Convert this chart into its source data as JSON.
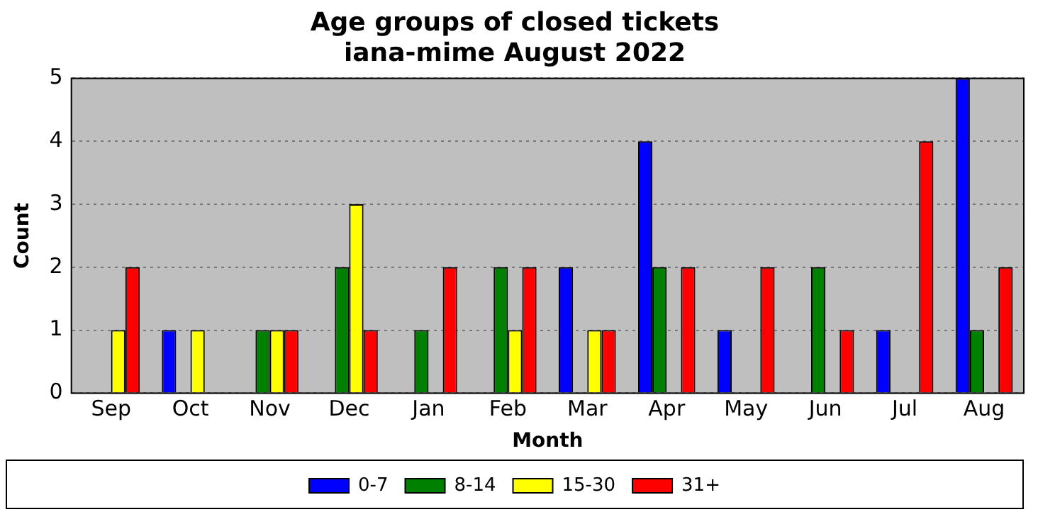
{
  "chart_data": {
    "type": "bar",
    "title": "Age groups of closed tickets\niana-mime August 2022",
    "xlabel": "Month",
    "ylabel": "Count",
    "categories": [
      "Sep",
      "Oct",
      "Nov",
      "Dec",
      "Jan",
      "Feb",
      "Mar",
      "Apr",
      "May",
      "Jun",
      "Jul",
      "Aug"
    ],
    "series": [
      {
        "name": "0-7",
        "color": "#0000ff",
        "values": [
          0,
          1,
          0,
          0,
          0,
          0,
          2,
          4,
          1,
          0,
          1,
          5
        ]
      },
      {
        "name": "8-14",
        "color": "#008000",
        "values": [
          0,
          0,
          1,
          2,
          1,
          2,
          0,
          2,
          0,
          2,
          0,
          1
        ]
      },
      {
        "name": "15-30",
        "color": "#ffff00",
        "values": [
          1,
          1,
          1,
          3,
          0,
          1,
          1,
          0,
          0,
          0,
          0,
          0
        ]
      },
      {
        "name": "31+",
        "color": "#ff0000",
        "values": [
          2,
          0,
          1,
          1,
          2,
          2,
          1,
          2,
          2,
          1,
          4,
          2
        ]
      }
    ],
    "ylim": [
      0,
      5
    ],
    "yticks": [
      0,
      1,
      2,
      3,
      4,
      5
    ],
    "grid": "y",
    "legend": "bottom"
  }
}
